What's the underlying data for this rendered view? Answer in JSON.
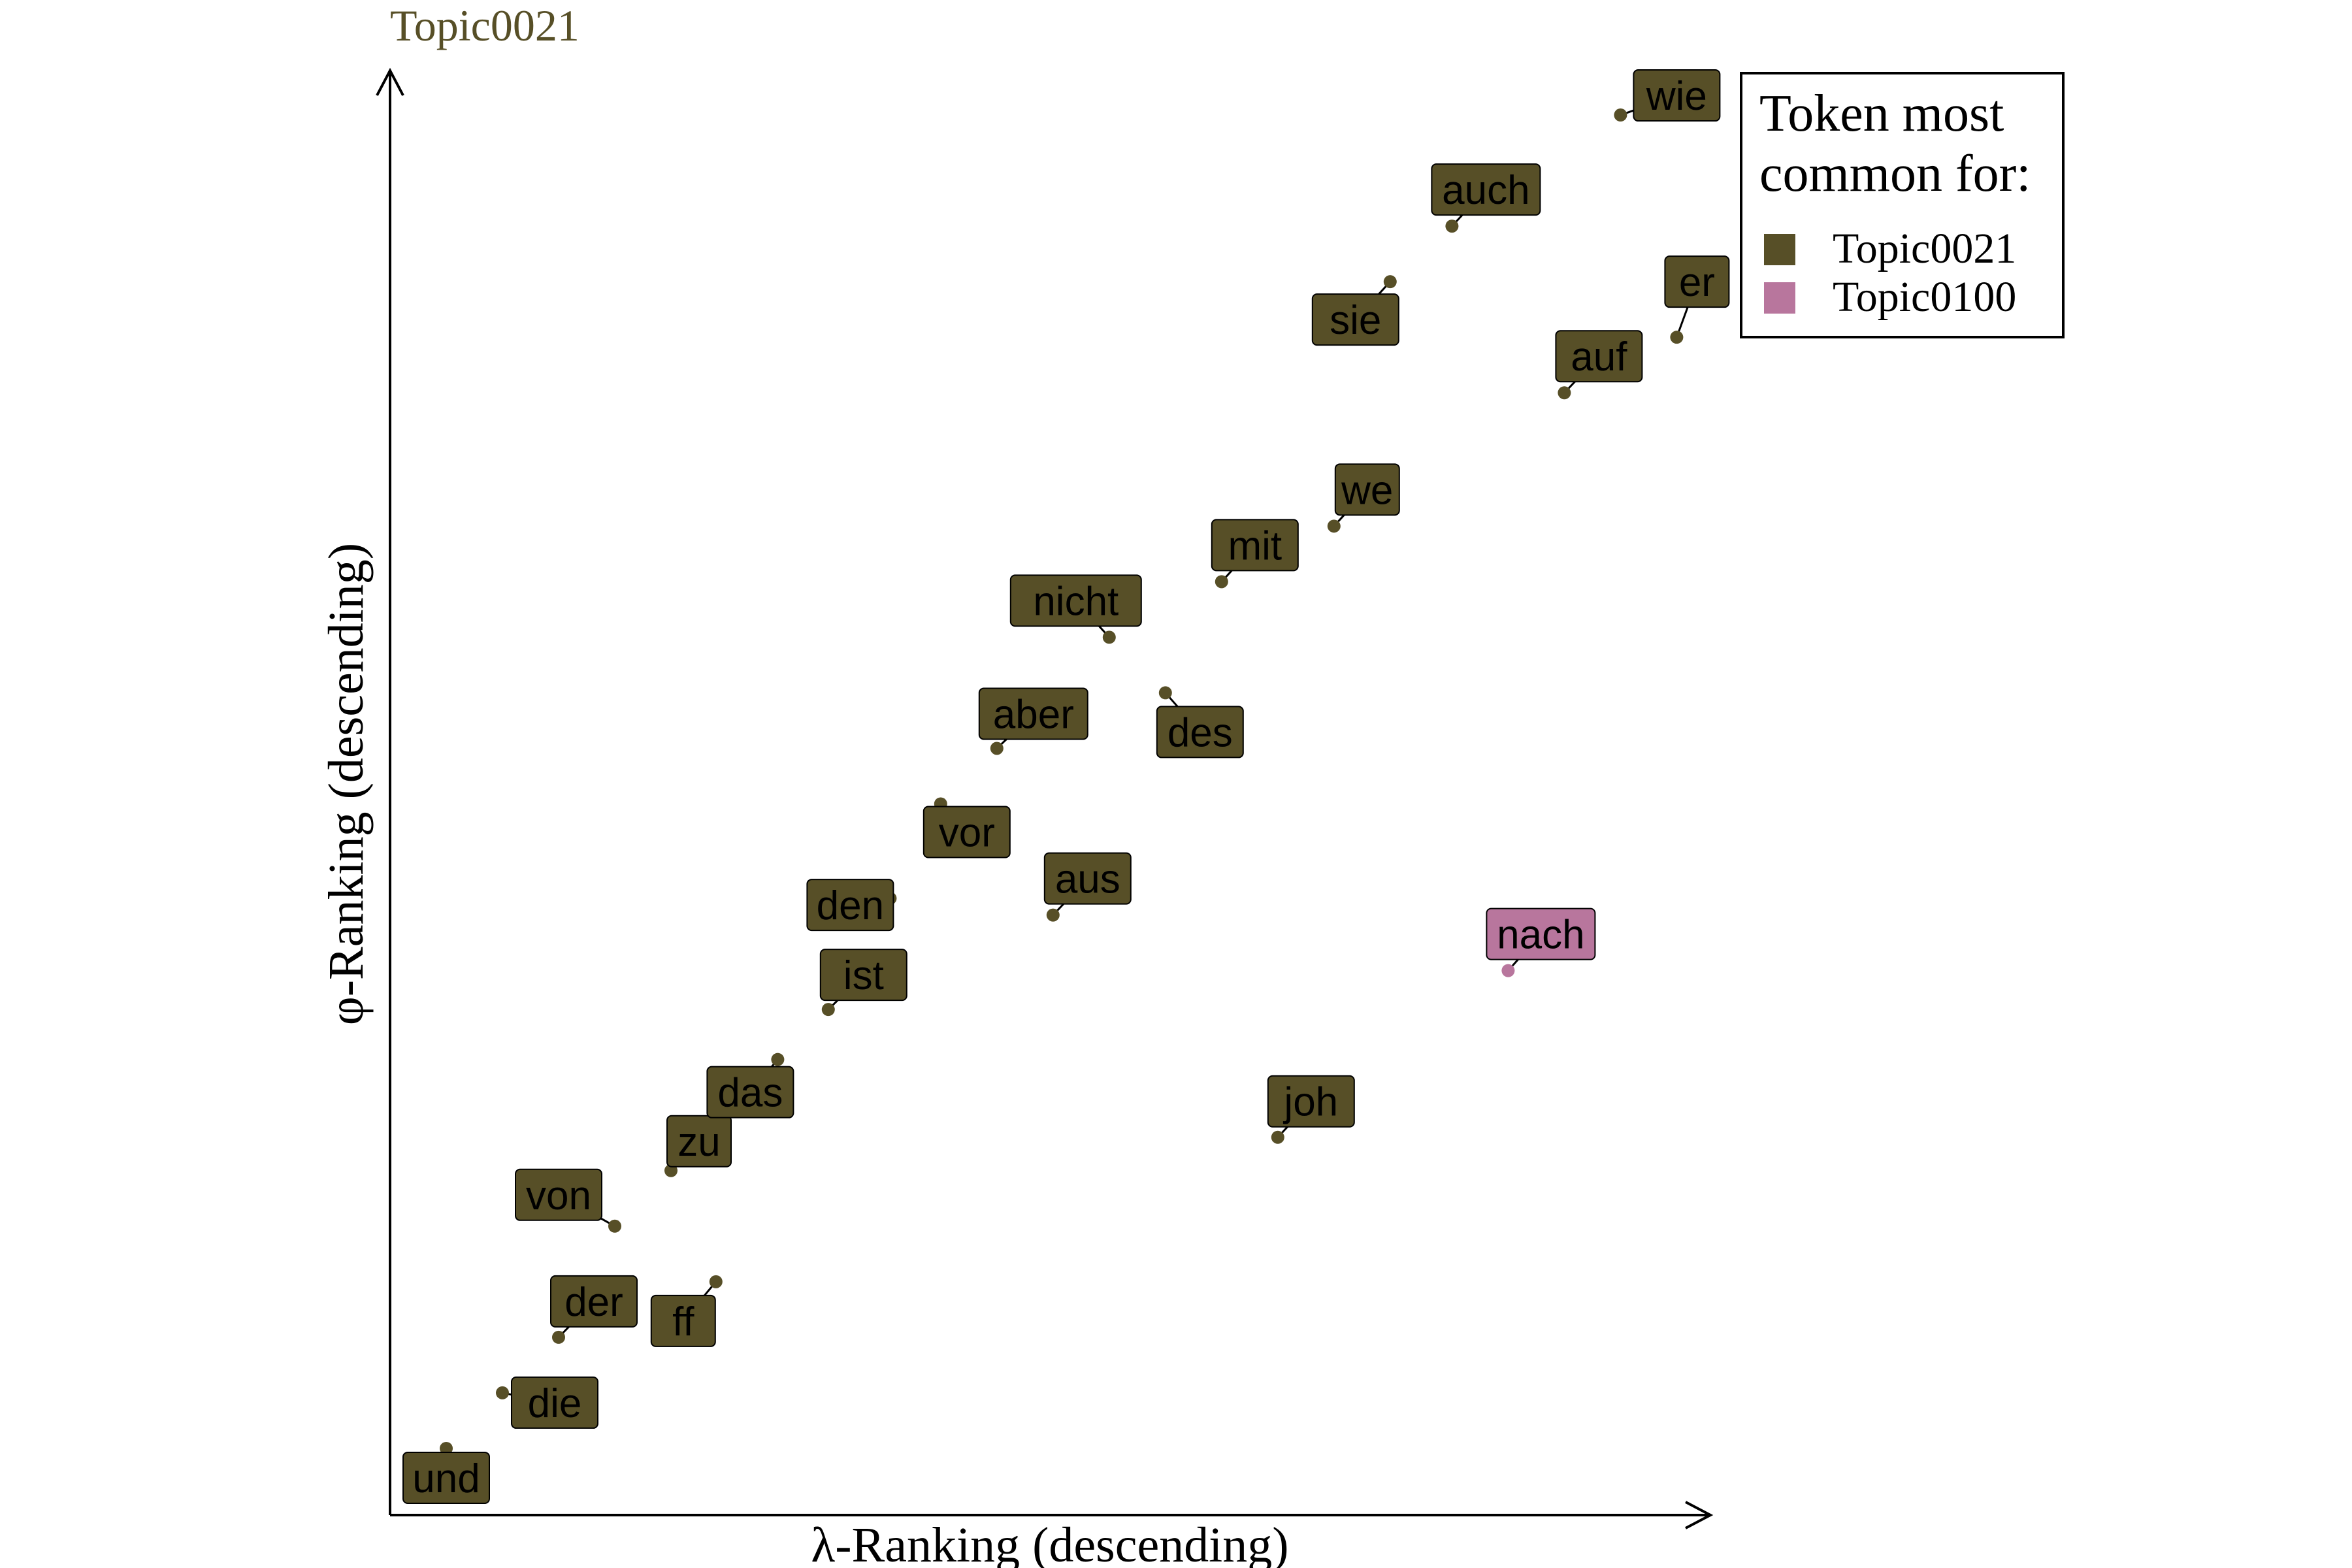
{
  "colors": {
    "Topic0021": "#574F27",
    "Topic0100": "#B8769D",
    "axis": "#000000",
    "background": "#ffffff"
  },
  "chart_data": {
    "type": "scatter",
    "title": "Topic0021",
    "xlabel": "λ-Ranking (descending)",
    "ylabel": "φ-Ranking (descending)",
    "xlim": [
      0,
      23.5
    ],
    "ylim": [
      0,
      26
    ],
    "grid": false,
    "axis_ticks": false,
    "legend": {
      "title_lines": [
        "Token most",
        "common for:"
      ],
      "placement": "top-right outside plot",
      "entries": [
        {
          "name": "Topic0021",
          "color_key": "Topic0021"
        },
        {
          "name": "Topic0100",
          "color_key": "Topic0100"
        }
      ]
    },
    "points": [
      {
        "token": "und",
        "x": 1,
        "y": 1.2,
        "topic": "Topic0021"
      },
      {
        "token": "die",
        "x": 2,
        "y": 2.2,
        "topic": "Topic0021"
      },
      {
        "token": "der",
        "x": 3,
        "y": 3.2,
        "topic": "Topic0021"
      },
      {
        "token": "ff",
        "x": 5.8,
        "y": 4.2,
        "topic": "Topic0021"
      },
      {
        "token": "von",
        "x": 4,
        "y": 5.2,
        "topic": "Topic0021"
      },
      {
        "token": "zu",
        "x": 5,
        "y": 6.2,
        "topic": "Topic0021"
      },
      {
        "token": "das",
        "x": 6.9,
        "y": 8.2,
        "topic": "Topic0021"
      },
      {
        "token": "ist",
        "x": 7.8,
        "y": 9.1,
        "topic": "Topic0021"
      },
      {
        "token": "den",
        "x": 8.9,
        "y": 11.1,
        "topic": "Topic0021"
      },
      {
        "token": "vor",
        "x": 9.8,
        "y": 12.8,
        "topic": "Topic0021"
      },
      {
        "token": "aber",
        "x": 10.8,
        "y": 13.8,
        "topic": "Topic0021"
      },
      {
        "token": "nicht",
        "x": 12.8,
        "y": 15.8,
        "topic": "Topic0021"
      },
      {
        "token": "mit",
        "x": 14.8,
        "y": 16.8,
        "topic": "Topic0021"
      },
      {
        "token": "we",
        "x": 16.8,
        "y": 17.8,
        "topic": "Topic0021"
      },
      {
        "token": "sie",
        "x": 17.8,
        "y": 22.2,
        "topic": "Topic0021"
      },
      {
        "token": "auch",
        "x": 18.9,
        "y": 23.2,
        "topic": "Topic0021"
      },
      {
        "token": "wie",
        "x": 21.9,
        "y": 25.2,
        "topic": "Topic0021"
      },
      {
        "token": "er",
        "x": 22.9,
        "y": 21.2,
        "topic": "Topic0021"
      },
      {
        "token": "auf",
        "x": 20.9,
        "y": 20.2,
        "topic": "Topic0021"
      },
      {
        "token": "des",
        "x": 13.8,
        "y": 14.8,
        "topic": "Topic0021"
      },
      {
        "token": "aus",
        "x": 11.8,
        "y": 10.8,
        "topic": "Topic0021"
      },
      {
        "token": "joh",
        "x": 15.8,
        "y": 6.8,
        "topic": "Topic0021"
      },
      {
        "token": "nach",
        "x": 19.9,
        "y": 9.8,
        "topic": "Topic0100"
      }
    ]
  }
}
